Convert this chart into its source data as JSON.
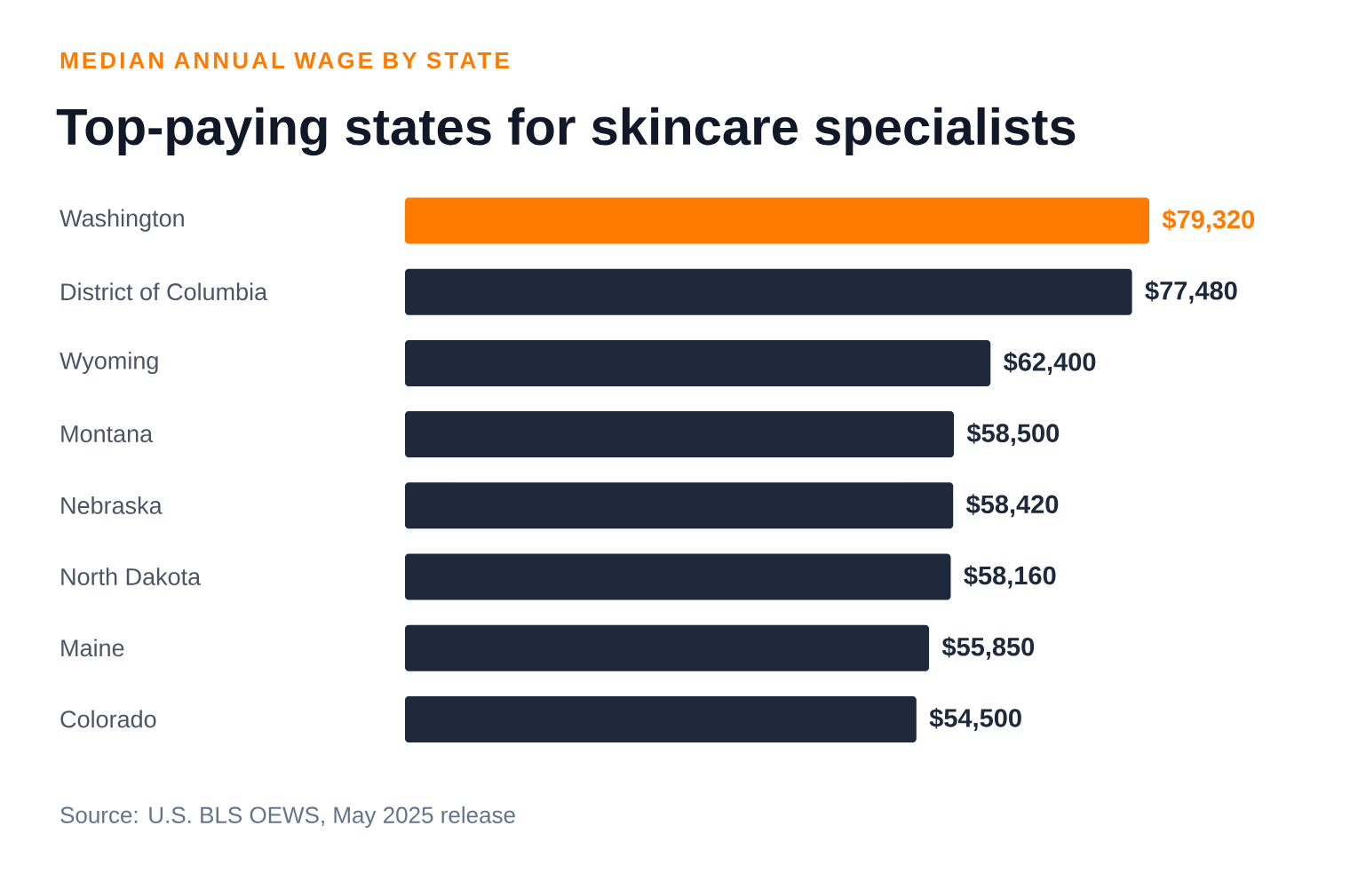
{
  "chart_data": {
    "type": "bar",
    "orientation": "horizontal",
    "subtitle": "MEDIAN ANNUAL WAGE BY STATE",
    "title": "Top-paying states for skincare specialists",
    "categories": [
      "Washington",
      "District of Columbia",
      "Wyoming",
      "Montana",
      "Nebraska",
      "North Dakota",
      "Maine",
      "Colorado"
    ],
    "values": [
      79320,
      77480,
      62400,
      58500,
      58420,
      58160,
      55850,
      54500
    ],
    "value_labels": [
      "$79,320",
      "$77,480",
      "$62,400",
      "$58,500",
      "$58,420",
      "$58,160",
      "$55,850",
      "$54,500"
    ],
    "colors": [
      "#ff7b00",
      "#1e293b",
      "#1e293b",
      "#1e293b",
      "#1e293b",
      "#1e293b",
      "#1e293b",
      "#1e293b"
    ],
    "annotations": [
      "Source: U.S. BLS OEWS, May 2025 release"
    ]
  }
}
